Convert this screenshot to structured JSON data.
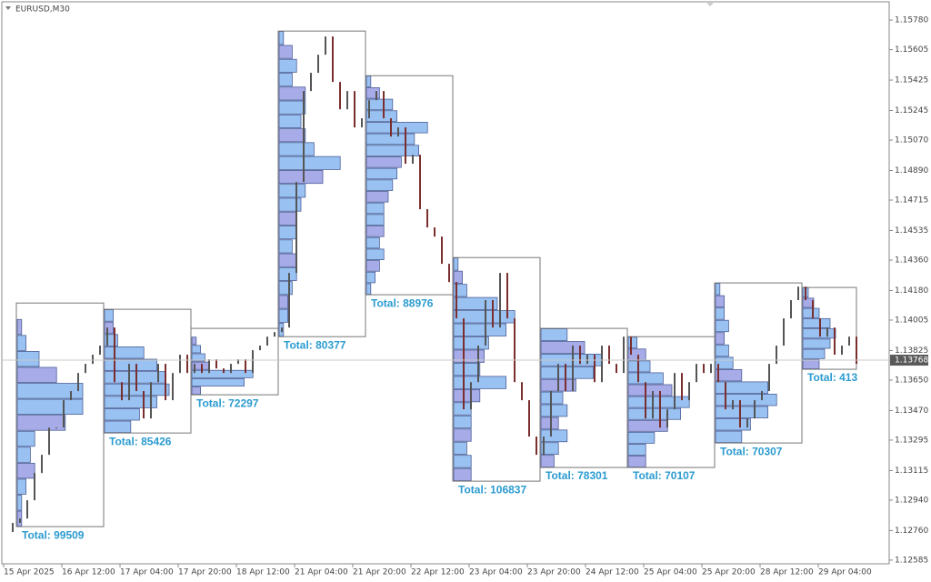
{
  "chart_data": {
    "type": "candlestick-profile",
    "title": "EURUSD,M30",
    "ylim": [
      1.12563,
      1.15888
    ],
    "yticks": [
      {
        "value": 1.1578,
        "label": "1.15780"
      },
      {
        "value": 1.15605,
        "label": "1.15605"
      },
      {
        "value": 1.15425,
        "label": "1.15425"
      },
      {
        "value": 1.15245,
        "label": "1.15245"
      },
      {
        "value": 1.1507,
        "label": "1.15070"
      },
      {
        "value": 1.1489,
        "label": "1.14890"
      },
      {
        "value": 1.14715,
        "label": "1.14715"
      },
      {
        "value": 1.14535,
        "label": "1.14535"
      },
      {
        "value": 1.1436,
        "label": "1.14360"
      },
      {
        "value": 1.1418,
        "label": "1.14180"
      },
      {
        "value": 1.14005,
        "label": "1.14005"
      },
      {
        "value": 1.13825,
        "label": "1.13825"
      },
      {
        "value": 1.1365,
        "label": "1.13650"
      },
      {
        "value": 1.1347,
        "label": "1.13470"
      },
      {
        "value": 1.13295,
        "label": "1.13295"
      },
      {
        "value": 1.13115,
        "label": "1.13115"
      },
      {
        "value": 1.1294,
        "label": "1.12940"
      },
      {
        "value": 1.1276,
        "label": "1.12760"
      },
      {
        "value": 1.12585,
        "label": "1.12585"
      }
    ],
    "x_labels": [
      "15 Apr 2025",
      "16 Apr 12:00",
      "17 Apr 04:00",
      "17 Apr 20:00",
      "18 Apr 12:00",
      "21 Apr 04:00",
      "21 Apr 20:00",
      "22 Apr 12:00",
      "23 Apr 04:00",
      "23 Apr 20:00",
      "24 Apr 12:00",
      "25 Apr 04:00",
      "25 Apr 20:00",
      "28 Apr 12:00",
      "29 Apr 04:00"
    ],
    "current_price": {
      "value": 1.13768,
      "label": "1.13768"
    },
    "candle_up_color": "#555555",
    "candle_down_color": "#7a2e2e",
    "profile_color": "#8fbcf2",
    "profile_alt_color": "#9ea2e6",
    "close": [
      1.12751,
      1.12805,
      1.12831,
      1.12939,
      1.131,
      1.13208,
      1.13369,
      1.13369,
      1.13531,
      1.13585,
      1.13692,
      1.13746,
      1.138,
      1.13854,
      1.13961,
      1.13638,
      1.13531,
      1.13746,
      1.13585,
      1.13423,
      1.13638,
      1.13746,
      1.13531,
      1.13692,
      1.138,
      1.13692,
      1.13746,
      1.13692,
      1.13773,
      1.13719,
      1.13692,
      1.13746,
      1.13773,
      1.13692,
      1.13827,
      1.13854,
      1.13907,
      1.13934,
      1.13961,
      1.14284,
      1.14822,
      1.1536,
      1.15468,
      1.15575,
      1.15683,
      1.15414,
      1.15252,
      1.1536,
      1.15145,
      1.15199,
      1.15306,
      1.1536,
      1.15199,
      1.15091,
      1.15145,
      1.1493,
      1.14983,
      1.14661,
      1.14553,
      1.14499,
      1.14338,
      1.1423,
      1.14015,
      1.13477,
      1.13638,
      1.13854,
      1.14123,
      1.13961,
      1.14284,
      1.14015,
      1.13638,
      1.13531,
      1.13316,
      1.13208,
      1.13316,
      1.13585,
      1.13746,
      1.13585,
      1.13854,
      1.13746,
      1.138,
      1.13638,
      1.13854,
      1.13746,
      1.13692,
      1.13907,
      1.138,
      1.13638,
      1.13423,
      1.13585,
      1.13369,
      1.13477,
      1.13692,
      1.13531,
      1.13638,
      1.13746,
      1.13692,
      1.13746,
      1.13638,
      1.13477,
      1.13531,
      1.13369,
      1.13423,
      1.13531,
      1.13585,
      1.13746,
      1.13854,
      1.14015,
      1.14123,
      1.14203,
      1.14123,
      1.14015,
      1.13907,
      1.13961,
      1.138,
      1.13854,
      1.13907,
      1.13746
    ],
    "profiles": [
      {
        "top": 1.14106,
        "bottom": 1.12783,
        "label": "Total: 99509",
        "bars": [
          0,
          5,
          10,
          25,
          45,
          75,
          75,
          55,
          20,
          15,
          20,
          10,
          5,
          5
        ]
      },
      {
        "top": 1.14069,
        "bottom": 1.13337,
        "label": "Total: 85426",
        "bars": [
          10,
          10,
          15,
          45,
          60,
          70,
          74,
          60,
          40,
          30
        ]
      },
      {
        "top": 1.13956,
        "bottom": 1.13563,
        "label": "Total: 72297",
        "bars": [
          0,
          5,
          10,
          15,
          20,
          70,
          60,
          10
        ]
      },
      {
        "top": 1.15715,
        "bottom": 1.13907,
        "label": "Total: 80377",
        "bars": [
          5,
          15,
          20,
          15,
          30,
          30,
          25,
          30,
          40,
          70,
          50,
          30,
          25,
          20,
          20,
          15,
          20,
          20,
          15,
          10,
          10,
          5
        ]
      },
      {
        "top": 1.15451,
        "bottom": 1.14155,
        "label": "Total: 88976",
        "bars": [
          5,
          15,
          30,
          35,
          70,
          55,
          60,
          40,
          35,
          30,
          25,
          20,
          20,
          20,
          15,
          20,
          15,
          10,
          5
        ]
      },
      {
        "top": 1.14375,
        "bottom": 1.13052,
        "label": "Total: 106837",
        "bars": [
          5,
          10,
          15,
          50,
          70,
          60,
          40,
          35,
          30,
          60,
          30,
          20,
          20,
          20,
          15,
          20,
          20
        ]
      },
      {
        "top": 1.13956,
        "bottom": 1.13133,
        "label": "Total: 78301",
        "bars": [
          30,
          50,
          70,
          60,
          40,
          25,
          30,
          20,
          30,
          20,
          15
        ]
      },
      {
        "top": 1.13907,
        "bottom": 1.13133,
        "label": "Total: 70107",
        "bars": [
          10,
          20,
          25,
          40,
          50,
          70,
          60,
          45,
          30,
          20,
          20
        ]
      },
      {
        "top": 1.14225,
        "bottom": 1.13278,
        "label": "Total: 70307",
        "bars": [
          5,
          10,
          10,
          15,
          10,
          15,
          20,
          30,
          60,
          70,
          60,
          40,
          30
        ]
      },
      {
        "top": 1.14198,
        "bottom": 1.13714,
        "label": "Total: 413",
        "bars": [
          10,
          20,
          30,
          50,
          60,
          50,
          40,
          30
        ]
      }
    ]
  }
}
